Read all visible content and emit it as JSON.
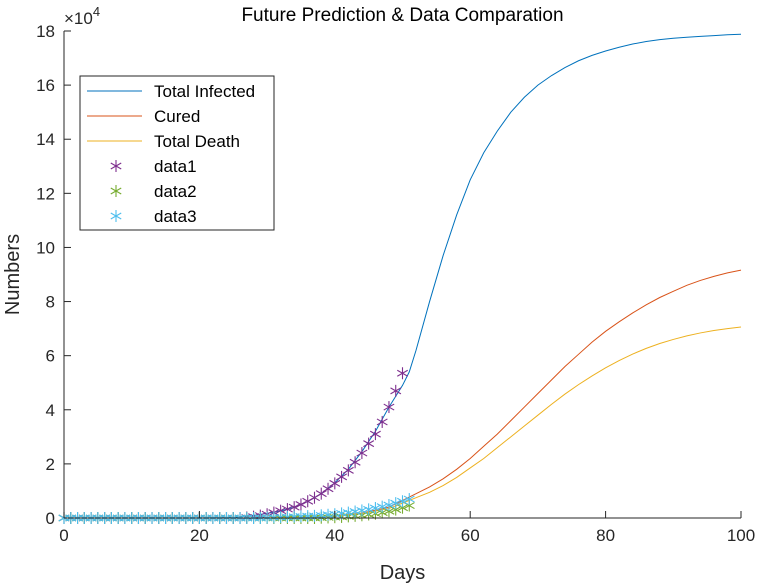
{
  "chart_data": {
    "type": "line",
    "title": "Future Prediction & Data Comparation",
    "xlabel": "Days",
    "ylabel": "Numbers",
    "xlim": [
      0,
      100
    ],
    "ylim": [
      0,
      180000
    ],
    "x_ticks": [
      0,
      20,
      40,
      60,
      80,
      100
    ],
    "y_ticks": [
      0,
      20000,
      40000,
      60000,
      80000,
      100000,
      120000,
      140000,
      160000,
      180000
    ],
    "x_tick_labels": [
      "0",
      "20",
      "40",
      "60",
      "80",
      "100"
    ],
    "y_tick_labels": [
      "0",
      "2",
      "4",
      "6",
      "8",
      "10",
      "12",
      "14",
      "16",
      "18"
    ],
    "y_exponent_label": "×10",
    "y_exponent_power": "4",
    "grid": false,
    "legend_position": "top-left",
    "series": [
      {
        "name": "Total Infected",
        "kind": "line",
        "color": "#0072BD",
        "x": [
          0,
          5,
          10,
          15,
          20,
          25,
          28,
          30,
          32,
          34,
          36,
          38,
          40,
          42,
          44,
          46,
          48,
          50,
          51,
          52,
          54,
          56,
          58,
          60,
          62,
          64,
          66,
          68,
          70,
          72,
          74,
          76,
          78,
          80,
          82,
          84,
          86,
          88,
          90,
          92,
          94,
          96,
          98,
          100
        ],
        "y": [
          0,
          0,
          0,
          0,
          0,
          200,
          1000,
          1700,
          2600,
          4000,
          6100,
          9000,
          13000,
          18000,
          24500,
          32000,
          41000,
          49000,
          54000,
          62000,
          80000,
          97000,
          112000,
          125000,
          135000,
          143000,
          150000,
          155500,
          160000,
          163500,
          166500,
          169000,
          171000,
          172600,
          174000,
          175200,
          176100,
          176800,
          177300,
          177700,
          178000,
          178300,
          178600,
          178800
        ]
      },
      {
        "name": "Cured",
        "kind": "line",
        "color": "#D95319",
        "x": [
          0,
          10,
          20,
          30,
          35,
          40,
          44,
          48,
          50,
          52,
          54,
          56,
          58,
          60,
          62,
          64,
          66,
          68,
          70,
          72,
          74,
          76,
          78,
          80,
          82,
          84,
          86,
          88,
          90,
          92,
          94,
          96,
          98,
          100
        ],
        "y": [
          0,
          0,
          0,
          0,
          200,
          800,
          1800,
          4000,
          6500,
          9000,
          11500,
          14500,
          18000,
          22000,
          26500,
          31000,
          36000,
          41000,
          46000,
          51000,
          56000,
          60500,
          65000,
          69000,
          72500,
          75800,
          78800,
          81500,
          83800,
          86000,
          87800,
          89300,
          90600,
          91600
        ]
      },
      {
        "name": "Total Death",
        "kind": "line",
        "color": "#EDB120",
        "x": [
          0,
          10,
          20,
          30,
          35,
          40,
          44,
          48,
          50,
          52,
          54,
          56,
          58,
          60,
          62,
          64,
          66,
          68,
          70,
          72,
          74,
          76,
          78,
          80,
          82,
          84,
          86,
          88,
          90,
          92,
          94,
          96,
          98,
          100
        ],
        "y": [
          0,
          0,
          0,
          0,
          200,
          700,
          1600,
          3500,
          5500,
          7500,
          9500,
          12000,
          15000,
          18500,
          22000,
          26000,
          30000,
          34000,
          38000,
          42000,
          45800,
          49300,
          52500,
          55500,
          58200,
          60600,
          62700,
          64500,
          66000,
          67300,
          68400,
          69300,
          70000,
          70600
        ]
      },
      {
        "name": "data1",
        "kind": "marker",
        "color": "#7E2F8E",
        "x": [
          0,
          1,
          2,
          3,
          4,
          5,
          6,
          7,
          8,
          9,
          10,
          11,
          12,
          13,
          14,
          15,
          16,
          17,
          18,
          19,
          20,
          21,
          22,
          23,
          24,
          25,
          26,
          27,
          28,
          29,
          30,
          31,
          32,
          33,
          34,
          35,
          36,
          37,
          38,
          39,
          40,
          41,
          42,
          43,
          44,
          45,
          46,
          47,
          48,
          49,
          50,
          51
        ],
        "y": [
          0,
          0,
          0,
          0,
          0,
          0,
          0,
          0,
          0,
          0,
          0,
          0,
          0,
          0,
          0,
          0,
          0,
          0,
          0,
          0,
          0,
          0,
          0,
          0,
          0,
          0,
          0,
          200,
          500,
          900,
          1400,
          2000,
          2700,
          3300,
          4000,
          5000,
          6200,
          7500,
          9000,
          10800,
          12800,
          15200,
          17600,
          20600,
          24000,
          27500,
          31000,
          35500,
          41000,
          47000,
          53500,
          0
        ]
      },
      {
        "name": "data2",
        "kind": "marker",
        "color": "#77AC30",
        "x": [
          0,
          1,
          2,
          3,
          4,
          5,
          6,
          7,
          8,
          9,
          10,
          11,
          12,
          13,
          14,
          15,
          16,
          17,
          18,
          19,
          20,
          21,
          22,
          23,
          24,
          25,
          26,
          27,
          28,
          29,
          30,
          31,
          32,
          33,
          34,
          35,
          36,
          37,
          38,
          39,
          40,
          41,
          42,
          43,
          44,
          45,
          46,
          47,
          48,
          49,
          50,
          51
        ],
        "y": [
          0,
          0,
          0,
          0,
          0,
          0,
          0,
          0,
          0,
          0,
          0,
          0,
          0,
          0,
          0,
          0,
          0,
          0,
          0,
          0,
          0,
          0,
          0,
          0,
          0,
          0,
          0,
          0,
          0,
          0,
          0,
          0,
          0,
          0,
          0,
          0,
          0,
          0,
          100,
          200,
          300,
          400,
          600,
          800,
          1000,
          1300,
          1600,
          2000,
          2500,
          3100,
          3800,
          4600
        ]
      },
      {
        "name": "data3",
        "kind": "marker",
        "color": "#4DBEEE",
        "x": [
          0,
          1,
          2,
          3,
          4,
          5,
          6,
          7,
          8,
          9,
          10,
          11,
          12,
          13,
          14,
          15,
          16,
          17,
          18,
          19,
          20,
          21,
          22,
          23,
          24,
          25,
          26,
          27,
          28,
          29,
          30,
          31,
          32,
          33,
          34,
          35,
          36,
          37,
          38,
          39,
          40,
          41,
          42,
          43,
          44,
          45,
          46,
          47,
          48,
          49,
          50,
          51
        ],
        "y": [
          0,
          0,
          0,
          0,
          0,
          0,
          0,
          0,
          0,
          0,
          0,
          0,
          0,
          0,
          0,
          0,
          0,
          0,
          0,
          0,
          0,
          0,
          0,
          0,
          0,
          0,
          0,
          0,
          0,
          0,
          100,
          200,
          300,
          400,
          500,
          600,
          700,
          800,
          1000,
          1200,
          1400,
          1700,
          2000,
          2400,
          2800,
          3200,
          3700,
          4200,
          4800,
          5500,
          6200,
          7000
        ]
      }
    ]
  }
}
